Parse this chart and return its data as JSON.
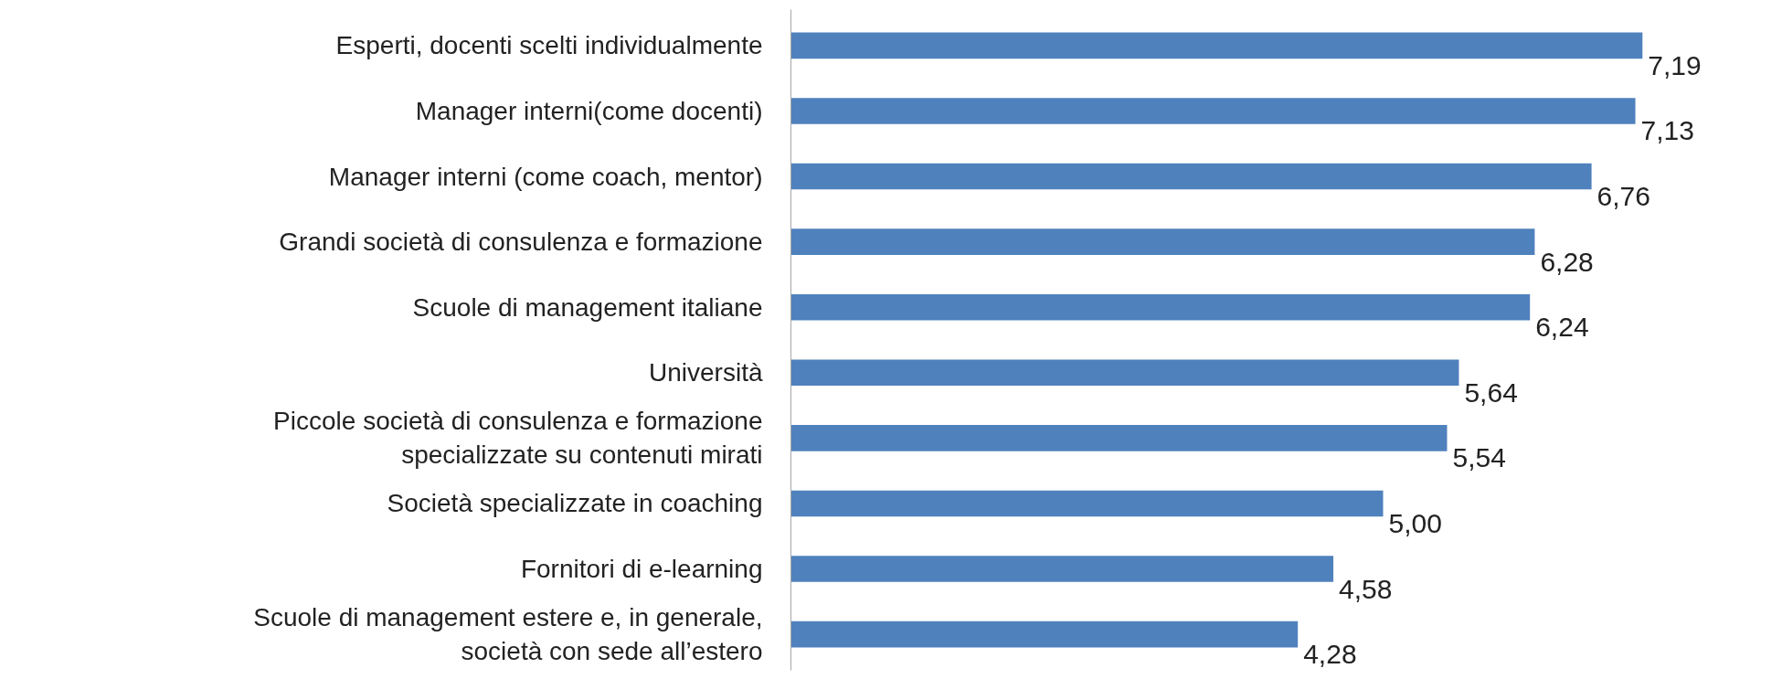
{
  "chart_data": {
    "type": "bar",
    "orientation": "horizontal",
    "categories": [
      "Esperti, docenti scelti individualmente",
      "Manager interni(come docenti)",
      "Manager interni (come coach, mentor)",
      "Grandi società di consulenza e formazione",
      "Scuole di management italiane",
      "Università",
      "Piccole società di consulenza e formazione\nspecializzate su contenuti mirati",
      "Società specializzate in coaching",
      "Fornitori di e-learning",
      "Scuole di management estere e, in generale,\nsocietà con sede all’estero"
    ],
    "values": [
      7.19,
      7.13,
      6.76,
      6.28,
      6.24,
      5.64,
      5.54,
      5.0,
      4.58,
      4.28
    ],
    "value_labels": [
      "7,19",
      "7,13",
      "6,76",
      "6,28",
      "6,24",
      "5,64",
      "5,54",
      "5,00",
      "4,58",
      "4,28"
    ],
    "color": "#4f81bd"
  }
}
